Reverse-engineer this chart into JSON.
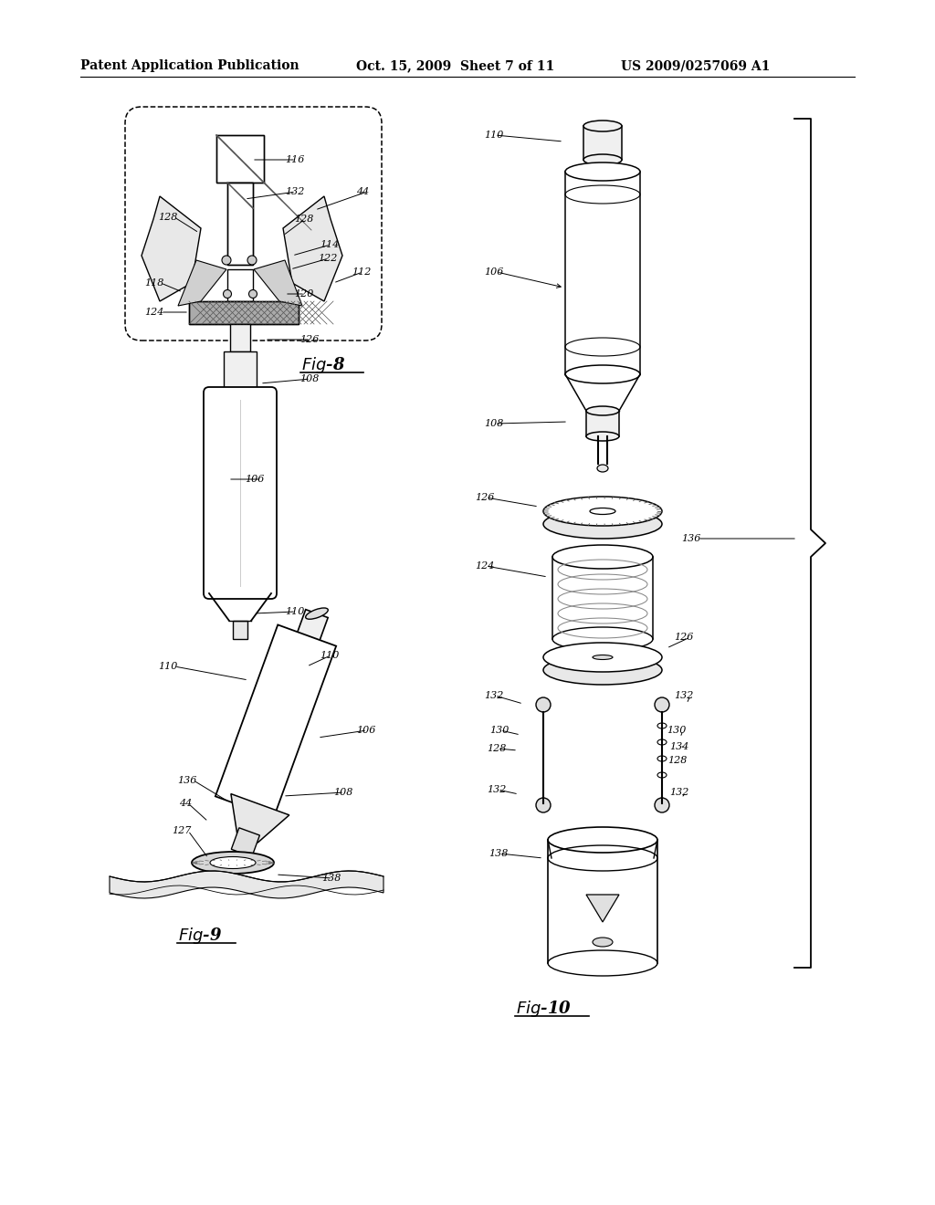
{
  "title_left": "Patent Application Publication",
  "title_mid": "Oct. 15, 2009  Sheet 7 of 11",
  "title_right": "US 2009/0257069 A1",
  "bg_color": "#ffffff",
  "line_color": "#000000",
  "font_size_header": 10,
  "font_size_label": 8,
  "font_size_fig": 12
}
